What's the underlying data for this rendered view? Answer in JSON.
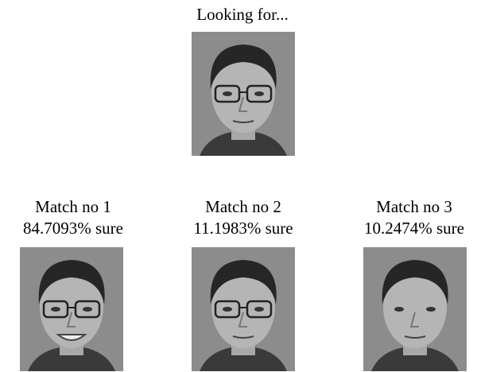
{
  "query": {
    "label": "Looking for..."
  },
  "matches": [
    {
      "label": "Match no 1",
      "confidence": "84.7093% sure"
    },
    {
      "label": "Match no 2",
      "confidence": "11.1983% sure"
    },
    {
      "label": "Match no 3",
      "confidence": "10.2474% sure"
    }
  ]
}
